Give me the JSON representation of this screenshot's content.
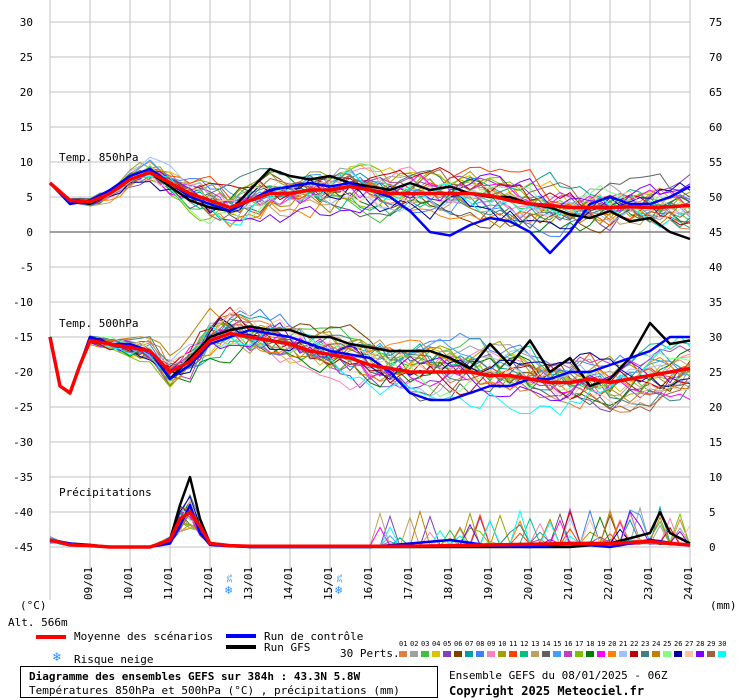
{
  "chart_data": {
    "type": "line",
    "left_axis_ticks": [
      "30",
      "25",
      "20",
      "15",
      "10",
      "5",
      "0",
      "-5",
      "-10",
      "-15",
      "-20",
      "-25",
      "-30",
      "-35",
      "-40",
      "-45"
    ],
    "right_axis_ticks": [
      "75",
      "70",
      "65",
      "60",
      "55",
      "50",
      "45",
      "40",
      "35",
      "30",
      "25",
      "20",
      "15",
      "10",
      "5",
      "0"
    ],
    "left_axis_unit": "(°C)",
    "right_axis_unit": "(mm)",
    "x_tick_labels": [
      "09/01",
      "10/01",
      "11/01",
      "12/01",
      "13/01",
      "14/01",
      "15/01",
      "16/01",
      "17/01",
      "18/01",
      "19/01",
      "20/01",
      "21/01",
      "22/01",
      "23/01",
      "24/01"
    ],
    "panel_labels": {
      "t850": "Temp. 850hPa",
      "t500": "Temp. 500hPa",
      "precip": "Précipitations"
    },
    "snow_risk_marks": [
      {
        "x": 4.5,
        "label": "3%"
      },
      {
        "x": 7.25,
        "label": "3%"
      }
    ],
    "series": [
      {
        "name": "Moyenne des scénarios",
        "color": "#ff0000",
        "panel": "t850",
        "x": [
          0,
          0.5,
          1,
          1.5,
          2,
          2.5,
          3,
          3.5,
          4,
          4.5,
          5,
          5.5,
          6,
          6.5,
          7,
          7.5,
          8,
          8.5,
          9,
          9.5,
          10,
          10.5,
          11,
          11.5,
          12,
          12.5,
          13,
          13.5,
          14,
          14.5,
          15,
          15.5,
          16
        ],
        "y": [
          7,
          4.5,
          4.3,
          5.5,
          7.5,
          8.5,
          7,
          5.5,
          4.5,
          3.5,
          4.5,
          5.5,
          5.5,
          6,
          6,
          6.5,
          6,
          5.5,
          5.5,
          5.5,
          5.5,
          5.5,
          5.2,
          4.5,
          4,
          3.8,
          3.5,
          3.5,
          3.5,
          3.6,
          3.5,
          3.6,
          3.8
        ]
      },
      {
        "name": "Run de contrôle",
        "color": "#0000ff",
        "panel": "t850",
        "x": [
          0,
          0.5,
          1,
          1.5,
          2,
          2.5,
          3,
          3.5,
          4,
          4.5,
          5,
          5.5,
          6,
          6.5,
          7,
          7.5,
          8,
          8.5,
          9,
          9.5,
          10,
          10.5,
          11,
          11.5,
          12,
          12.5,
          13,
          13.5,
          14,
          14.5,
          15,
          15.5,
          16
        ],
        "y": [
          7,
          4,
          4.5,
          6,
          8,
          9,
          7,
          5,
          4,
          3,
          4.5,
          6,
          6.5,
          7,
          6.5,
          7,
          6,
          5,
          3,
          0,
          -0.5,
          1,
          2,
          1.5,
          0,
          -3,
          0,
          4,
          5,
          4,
          4,
          5,
          6.5
        ]
      },
      {
        "name": "Run GFS",
        "color": "#000000",
        "panel": "t850",
        "x": [
          0,
          0.5,
          1,
          1.5,
          2,
          2.5,
          3,
          3.5,
          4,
          4.5,
          5,
          5.5,
          6,
          6.5,
          7,
          7.5,
          8,
          8.5,
          9,
          9.5,
          10,
          10.5,
          11,
          11.5,
          12,
          12.5,
          13,
          13.5,
          14,
          14.5,
          15,
          15.5,
          16
        ],
        "y": [
          7,
          4.5,
          4,
          5.5,
          7.5,
          8.5,
          6.5,
          4.5,
          3.5,
          3,
          6,
          9,
          8,
          7.5,
          8,
          7,
          6.5,
          6,
          7,
          6,
          6.5,
          5.5,
          5,
          5,
          4,
          3.5,
          2.5,
          2,
          3,
          1.5,
          2,
          0,
          -1
        ]
      },
      {
        "name": "Moyenne des scénarios",
        "color": "#ff0000",
        "panel": "t500",
        "x": [
          0,
          0.25,
          0.5,
          0.75,
          1,
          1.5,
          2,
          2.5,
          3,
          3.5,
          4,
          4.5,
          5,
          5.5,
          6,
          6.5,
          7,
          7.5,
          8,
          8.5,
          9,
          9.5,
          10,
          10.5,
          11,
          11.5,
          12,
          12.5,
          13,
          13.5,
          14,
          14.5,
          15,
          15.5,
          16
        ],
        "y": [
          -15,
          -22,
          -23,
          -19,
          -15.5,
          -16,
          -16.5,
          -17,
          -20,
          -18.5,
          -15.5,
          -14.5,
          -15,
          -15.5,
          -16,
          -17,
          -17.5,
          -18,
          -19,
          -19.5,
          -20,
          -20,
          -20,
          -20,
          -20.5,
          -20.5,
          -21,
          -21.5,
          -21.5,
          -21,
          -21.5,
          -21,
          -20.5,
          -20,
          -19.5
        ]
      },
      {
        "name": "Run de contrôle",
        "color": "#0000ff",
        "panel": "t500",
        "x": [
          0,
          0.25,
          0.5,
          0.75,
          1,
          1.5,
          2,
          2.5,
          3,
          3.5,
          4,
          4.5,
          5,
          5.5,
          6,
          6.5,
          7,
          7.5,
          8,
          8.5,
          9,
          9.5,
          10,
          10.5,
          11,
          11.5,
          12,
          12.5,
          13,
          13.5,
          14,
          14.5,
          15,
          15.5,
          16
        ],
        "y": [
          -15,
          -22,
          -23,
          -19,
          -15,
          -16,
          -16,
          -17,
          -21,
          -19,
          -16,
          -15,
          -14,
          -14.5,
          -15,
          -16,
          -17,
          -17.5,
          -18,
          -20,
          -23,
          -24,
          -24,
          -23,
          -22,
          -22,
          -21,
          -21,
          -20,
          -20,
          -19,
          -18,
          -17,
          -15,
          -15
        ]
      },
      {
        "name": "Run GFS",
        "color": "#000000",
        "panel": "t500",
        "x": [
          0,
          0.25,
          0.5,
          0.75,
          1,
          1.5,
          2,
          2.5,
          3,
          3.5,
          4,
          4.5,
          5,
          5.5,
          6,
          6.5,
          7,
          7.5,
          8,
          8.5,
          9,
          9.5,
          10,
          10.5,
          11,
          11.5,
          12,
          12.5,
          13,
          13.5,
          14,
          14.5,
          15,
          15.5,
          16
        ],
        "y": [
          -15,
          -22,
          -23,
          -19,
          -15,
          -16,
          -16.5,
          -17,
          -21,
          -18,
          -15,
          -14,
          -13.5,
          -14,
          -14,
          -15,
          -15,
          -16,
          -16.5,
          -17,
          -17,
          -17,
          -18,
          -19.5,
          -16,
          -19,
          -15.5,
          -20,
          -18,
          -22,
          -21,
          -18,
          -13,
          -16,
          -15.5
        ]
      },
      {
        "name": "Moyenne des scénarios",
        "color": "#ff0000",
        "panel": "precip",
        "x": [
          0,
          0.5,
          1,
          1.5,
          2,
          2.5,
          3,
          3.25,
          3.5,
          3.75,
          4,
          4.5,
          5,
          6,
          7,
          8,
          9,
          10,
          11,
          12,
          13,
          14,
          15,
          15.5,
          16
        ],
        "y": [
          1,
          0.3,
          0.2,
          0,
          0,
          0,
          1,
          4,
          5,
          3,
          0.5,
          0.2,
          0.1,
          0.1,
          0.1,
          0.1,
          0.1,
          0.2,
          0.3,
          0.4,
          0.5,
          0.5,
          0.8,
          0.5,
          0.3
        ]
      },
      {
        "name": "Run de contrôle",
        "color": "#0000ff",
        "panel": "precip",
        "x": [
          0,
          0.5,
          1,
          1.5,
          2,
          2.5,
          3,
          3.25,
          3.5,
          3.75,
          4,
          4.5,
          5,
          6,
          7,
          8,
          9,
          10,
          11,
          12,
          13,
          14,
          15,
          16
        ],
        "y": [
          1,
          0.5,
          0.2,
          0,
          0,
          0,
          0.5,
          3,
          6,
          2,
          0.3,
          0.1,
          0,
          0,
          0,
          0,
          0.5,
          1,
          0.2,
          0,
          0.5,
          0,
          1,
          0.2
        ]
      },
      {
        "name": "Run GFS",
        "color": "#000000",
        "panel": "precip",
        "x": [
          0,
          0.5,
          1,
          1.5,
          2,
          2.5,
          3,
          3.25,
          3.5,
          3.75,
          4,
          4.5,
          5,
          6,
          7,
          8,
          9,
          10,
          11,
          12,
          13,
          14,
          15,
          15.25,
          15.5,
          16
        ],
        "y": [
          1,
          0.5,
          0.3,
          0,
          0,
          0,
          1,
          6,
          10,
          4,
          0.5,
          0.2,
          0,
          0,
          0,
          0,
          0,
          0,
          0,
          0,
          0,
          0.5,
          2,
          5,
          2,
          0.5
        ]
      }
    ]
  },
  "legend": {
    "mean": "Moyenne des scénarios",
    "control": "Run de contrôle",
    "gfs": "Run GFS",
    "snow": "Risque neige",
    "perts": "30 Perts.",
    "pert_numbers": [
      "01",
      "02",
      "03",
      "04",
      "05",
      "06",
      "07",
      "08",
      "09",
      "10",
      "11",
      "12",
      "13",
      "14",
      "15",
      "16",
      "17",
      "18",
      "19",
      "20",
      "21",
      "22",
      "23",
      "24",
      "25",
      "26",
      "27",
      "28",
      "29",
      "30"
    ],
    "pert_colors": [
      "#e08040",
      "#a0a0a0",
      "#40c040",
      "#e0c000",
      "#8040c0",
      "#804000",
      "#00a0a0",
      "#4080ff",
      "#ff80c0",
      "#a0a000",
      "#ff4000",
      "#00c080",
      "#c0a060",
      "#606060",
      "#40a0ff",
      "#c040c0",
      "#80c000",
      "#008000",
      "#ff00ff",
      "#ff8000",
      "#a0c0ff",
      "#c00000",
      "#408080",
      "#c08000",
      "#80ff80",
      "#0000a0",
      "#ffc0a0",
      "#8000ff",
      "#a06040",
      "#00ffff"
    ],
    "colors": {
      "mean": "#ff0000",
      "control": "#0000ff",
      "gfs": "#000000"
    }
  },
  "footer": {
    "alt": "Alt. 566m",
    "title": "Diagramme des ensembles GEFS sur 384h : 43.3N 5.8W",
    "subtitle": "Températures 850hPa et 500hPa (°C) , précipitations (mm)",
    "ensemble": "Ensemble GEFS du 08/01/2025 - 06Z",
    "copyright": "Copyright 2025 Meteociel.fr"
  }
}
